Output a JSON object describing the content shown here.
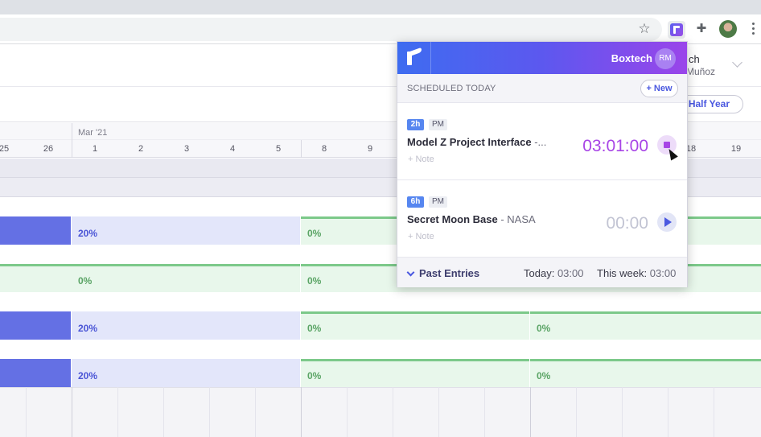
{
  "app": {
    "workspace_name": "ch",
    "workspace_user": "a Muñoz",
    "range_button": "Half Year"
  },
  "timeline": {
    "month": "Mar '21",
    "days": [
      "25",
      "26",
      "1",
      "2",
      "3",
      "4",
      "5",
      "8",
      "9",
      "18",
      "19"
    ],
    "rows": [
      {
        "left_pct": "20%",
        "right_pct": "0%",
        "far_pct": ""
      },
      {
        "left_pct": "0%",
        "right_pct": "0%",
        "far_pct": ""
      },
      {
        "left_pct": "20%",
        "right_pct": "0%",
        "far_pct": "0%"
      },
      {
        "left_pct": "20%",
        "right_pct": "0%",
        "far_pct": "0%"
      }
    ]
  },
  "popup": {
    "org_name": "Boxtech",
    "user_initials": "RM",
    "scheduled_label": "SCHEDULED TODAY",
    "new_button": "+ New",
    "entries": [
      {
        "hours": "2h",
        "period": "PM",
        "title": "Model Z Project Interface",
        "client": "-...",
        "note": "+ Note",
        "timer": "03:01:00",
        "state": "running"
      },
      {
        "hours": "6h",
        "period": "PM",
        "title": "Secret Moon Base",
        "client": "- NASA",
        "note": "+ Note",
        "timer": "00:00",
        "state": "idle"
      }
    ],
    "footer": {
      "past_entries": "Past Entries",
      "today_label": "Today:",
      "today_value": "03:00",
      "week_label": "This week:",
      "week_value": "03:00"
    }
  },
  "icons": {
    "bookmark": "star-icon",
    "extension": "puzzle-icon",
    "menu": "kebab-icon"
  },
  "colors": {
    "accent": "#4a58e0",
    "timer_active": "#a845e6",
    "bar_blue": "#6470e4",
    "bar_green": "#7cc98a"
  }
}
